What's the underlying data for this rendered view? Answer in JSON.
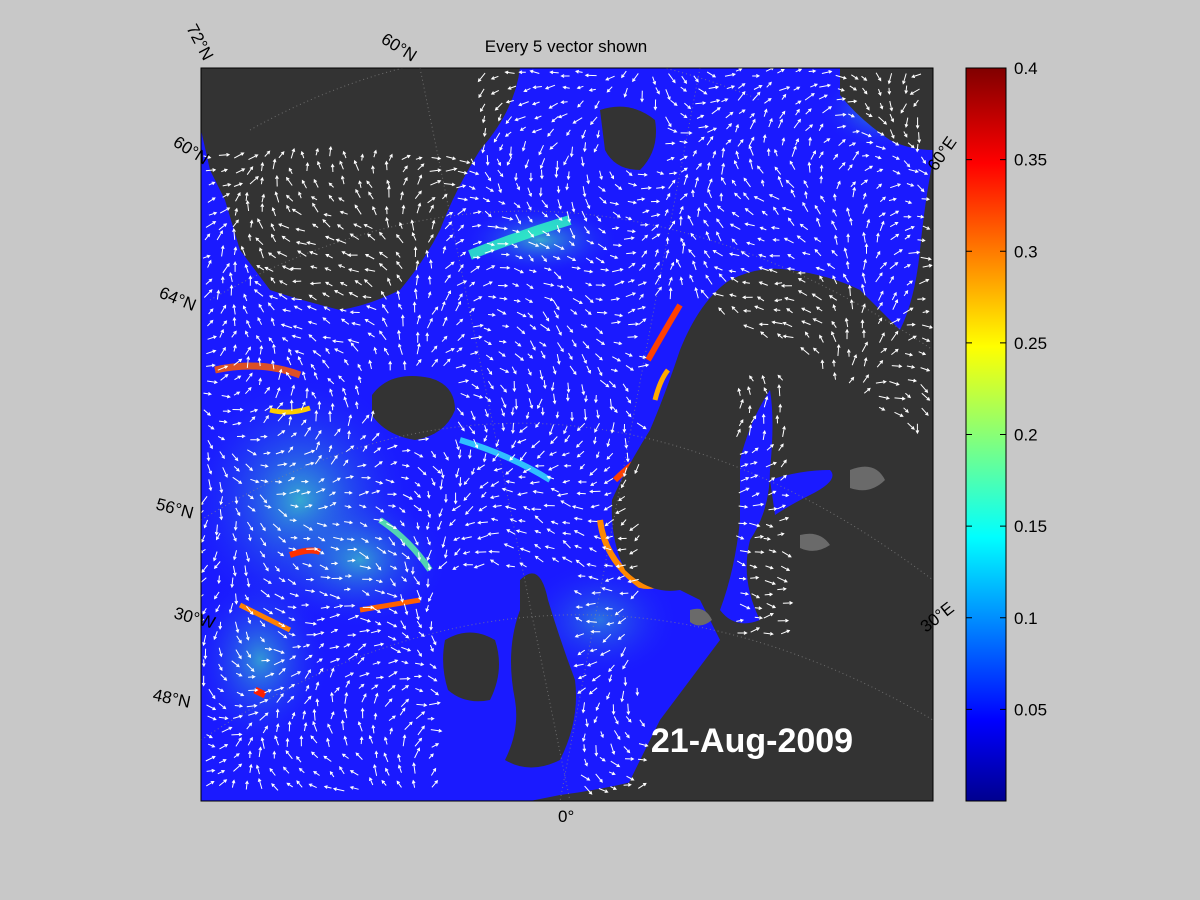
{
  "title": "Every 5 vector shown",
  "date_label": "21-Aug-2009",
  "map": {
    "latitude_labels": [
      "72°N",
      "60°N",
      "64°N",
      "56°N",
      "48°N"
    ],
    "longitude_labels": [
      "60°N",
      "60°E",
      "30°E",
      "30°W",
      "0°"
    ],
    "land_color": "#333333",
    "ocean_low_color": "#1a1aff",
    "vector_color": "#ffffff"
  },
  "colorbar": {
    "min": 0,
    "max": 0.4,
    "ticks": [
      0.05,
      0.1,
      0.15,
      0.2,
      0.25,
      0.3,
      0.35,
      0.4
    ],
    "tick_labels": [
      "0.05",
      "0.1",
      "0.15",
      "0.2",
      "0.25",
      "0.3",
      "0.35",
      "0.4"
    ],
    "colormap": "jet"
  }
}
